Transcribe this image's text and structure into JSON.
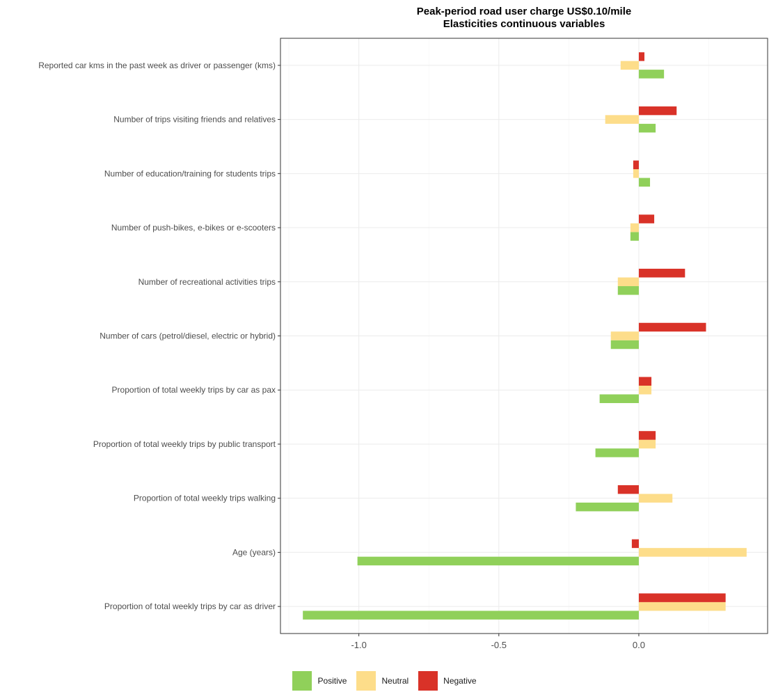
{
  "title_line1": "Peak-period road user charge US$0.10/mile",
  "title_line2": "Elasticities continuous variables",
  "legend": [
    {
      "label": "Positive",
      "color": "#90d05a"
    },
    {
      "label": "Neutral",
      "color": "#fddd8a"
    },
    {
      "label": "Negative",
      "color": "#d93228"
    }
  ],
  "chart_data": {
    "type": "bar",
    "orientation": "horizontal",
    "title": "Peak-period road user charge US$0.10/mile\nElasticities continuous variables",
    "xlabel": "",
    "ylabel": "",
    "xlim": [
      -1.28,
      0.46
    ],
    "xticks": [
      -1.0,
      -0.5,
      0.0
    ],
    "xtick_labels": [
      "-1.0",
      "-0.5",
      "0.0"
    ],
    "grid": true,
    "legend_position": "bottom",
    "categories": [
      "Reported car kms in the past week as driver or passenger (kms)",
      "Number of trips visiting friends and relatives",
      "Number of education/training for students trips",
      "Number of push-bikes, e-bikes or e-scooters",
      "Number of recreational activities trips",
      "Number of cars (petrol/diesel, electric or hybrid)",
      "Proportion of total weekly trips by car as pax",
      "Proportion of total weekly trips by public transport",
      "Proportion of total weekly trips walking",
      "Age (years)",
      "Proportion of total weekly trips by car as driver"
    ],
    "series": [
      {
        "name": "Positive",
        "color": "#90d05a",
        "values": [
          0.09,
          0.06,
          0.04,
          -0.03,
          -0.075,
          -0.1,
          -0.14,
          -0.155,
          -0.225,
          -1.005,
          -1.2
        ]
      },
      {
        "name": "Neutral",
        "color": "#fddd8a",
        "values": [
          -0.065,
          -0.12,
          -0.02,
          -0.03,
          -0.075,
          -0.1,
          0.045,
          0.06,
          0.12,
          0.385,
          0.31
        ]
      },
      {
        "name": "Negative",
        "color": "#d93228",
        "values": [
          0.02,
          0.135,
          -0.02,
          0.055,
          0.165,
          0.24,
          0.045,
          0.06,
          -0.075,
          -0.025,
          0.31
        ]
      }
    ]
  }
}
